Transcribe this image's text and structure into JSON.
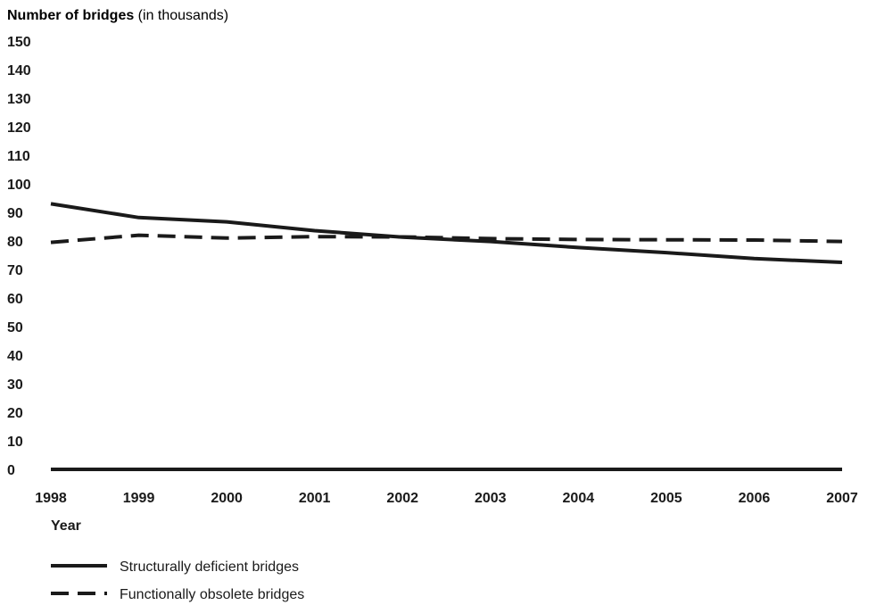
{
  "chart_data": {
    "type": "line",
    "ylabel_bold": "Number of bridges",
    "ylabel_rest": " (in thousands)",
    "xlabel": "Year",
    "x": [
      "1998",
      "1999",
      "2000",
      "2001",
      "2002",
      "2003",
      "2004",
      "2005",
      "2006",
      "2007"
    ],
    "yticks": [
      0,
      10,
      20,
      30,
      40,
      50,
      60,
      70,
      80,
      90,
      100,
      110,
      120,
      130,
      140,
      150
    ],
    "ylim": [
      0,
      150
    ],
    "grid": false,
    "legend_position": "bottom-left",
    "series": [
      {
        "name": "Structurally deficient bridges",
        "style": "solid",
        "values": [
          93,
          88.2,
          86.7,
          83.6,
          81.3,
          79.8,
          77.7,
          75.9,
          73.8,
          72.5
        ]
      },
      {
        "name": "Functionally obsolete bridges",
        "style": "dashed",
        "values": [
          79.5,
          82,
          81,
          81.5,
          81.4,
          80.8,
          80.5,
          80.4,
          80.3,
          79.8
        ]
      }
    ],
    "colors": {
      "line": "#1a1a1a"
    }
  }
}
